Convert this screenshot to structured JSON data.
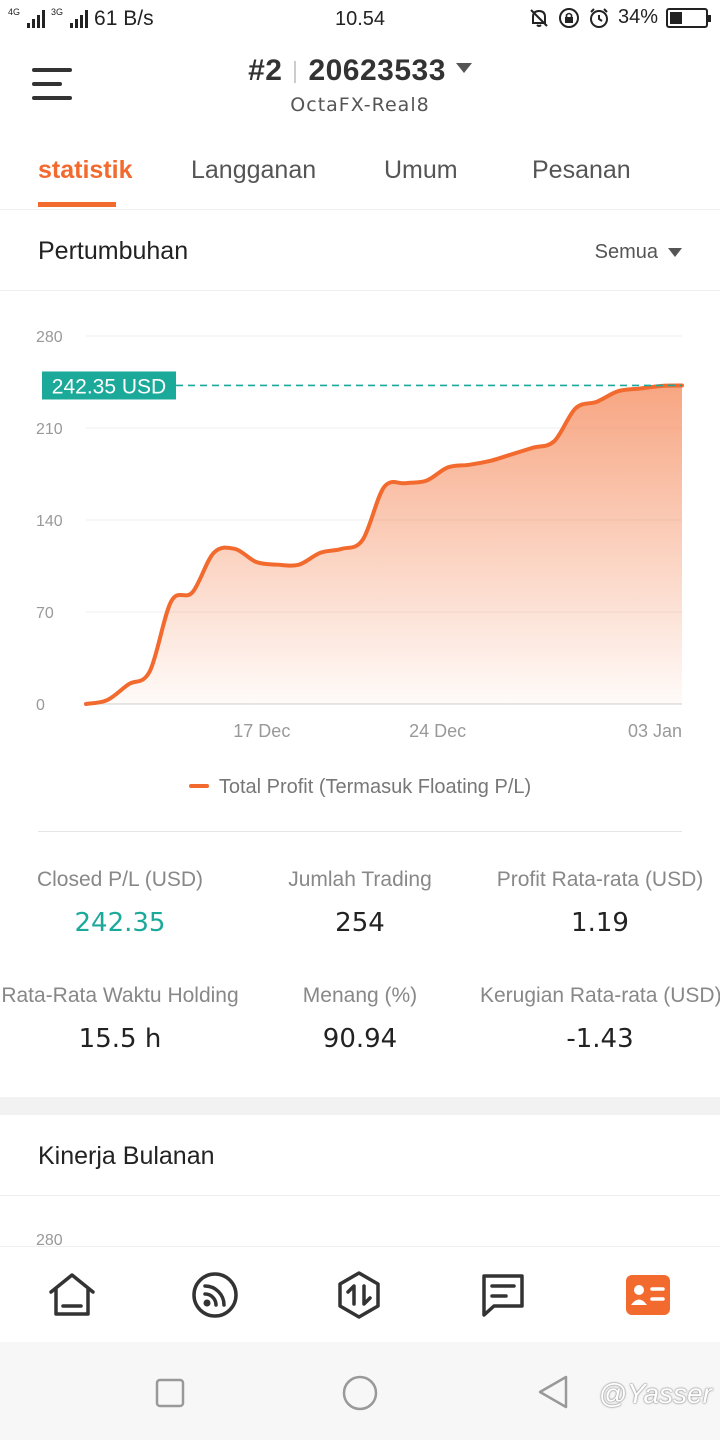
{
  "status_bar": {
    "network_tags": [
      "4G",
      "3G"
    ],
    "speed": "61 B/s",
    "time": "10.54",
    "battery": "34%",
    "battery_level": 0.34,
    "icons": [
      "mute-icon",
      "rotation-lock-icon",
      "alarm-icon",
      "battery-icon"
    ]
  },
  "header": {
    "account_index": "#2",
    "account_number": "20623533",
    "server": "OctaFX-Real8"
  },
  "tabs": [
    {
      "label": "statistik",
      "active": true
    },
    {
      "label": "Langganan",
      "active": false
    },
    {
      "label": "Umum",
      "active": false
    },
    {
      "label": "Pesanan",
      "active": false
    }
  ],
  "growth": {
    "title": "Pertumbuhan",
    "filter": "Semua"
  },
  "chart_data": {
    "type": "area",
    "y_ticks": [
      "280",
      "210",
      "140",
      "70",
      "0"
    ],
    "x_ticks": [
      "17 Dec",
      "24 Dec",
      "03 Jan"
    ],
    "ylim": [
      0,
      280
    ],
    "current_value_label": "242.35 USD",
    "current_value": 242.35,
    "series": [
      {
        "name": "Total Profit (Termasuk Floating P/L)",
        "color": "#f26a2e",
        "x": [
          0,
          1,
          2,
          3,
          4,
          5,
          6,
          7,
          8,
          9,
          10,
          11,
          12,
          13,
          14,
          15,
          16,
          17,
          18,
          19,
          20,
          21,
          22,
          23,
          24,
          25,
          26,
          27,
          28
        ],
        "values": [
          0,
          3,
          15,
          25,
          78,
          85,
          115,
          118,
          108,
          106,
          106,
          115,
          118,
          125,
          165,
          168,
          170,
          180,
          182,
          185,
          190,
          195,
          200,
          225,
          230,
          238,
          240,
          242,
          242.35
        ]
      }
    ]
  },
  "stats": [
    {
      "label": "Closed P/L (USD)",
      "value": "242.35",
      "highlight": true
    },
    {
      "label": "Jumlah Trading",
      "value": "254",
      "highlight": false
    },
    {
      "label": "Profit Rata-rata (USD)",
      "value": "1.19",
      "highlight": false
    },
    {
      "label": "Rata-Rata Waktu Holding",
      "value": "15.5 h",
      "highlight": false
    },
    {
      "label": "Menang (%)",
      "value": "90.94",
      "highlight": false
    },
    {
      "label": "Kerugian Rata-rata (USD)",
      "value": "-1.43",
      "highlight": false
    }
  ],
  "monthly": {
    "title": "Kinerja Bulanan",
    "first_tick": "280"
  },
  "bottom_nav": [
    {
      "icon": "home-icon",
      "active": false
    },
    {
      "icon": "feed-icon",
      "active": false
    },
    {
      "icon": "trade-icon",
      "active": false
    },
    {
      "icon": "chat-icon",
      "active": false
    },
    {
      "icon": "profile-card-icon",
      "active": true
    }
  ],
  "watermark": "@Yasser",
  "colors": {
    "accent": "#f26a2e",
    "green": "#1ba99a"
  }
}
